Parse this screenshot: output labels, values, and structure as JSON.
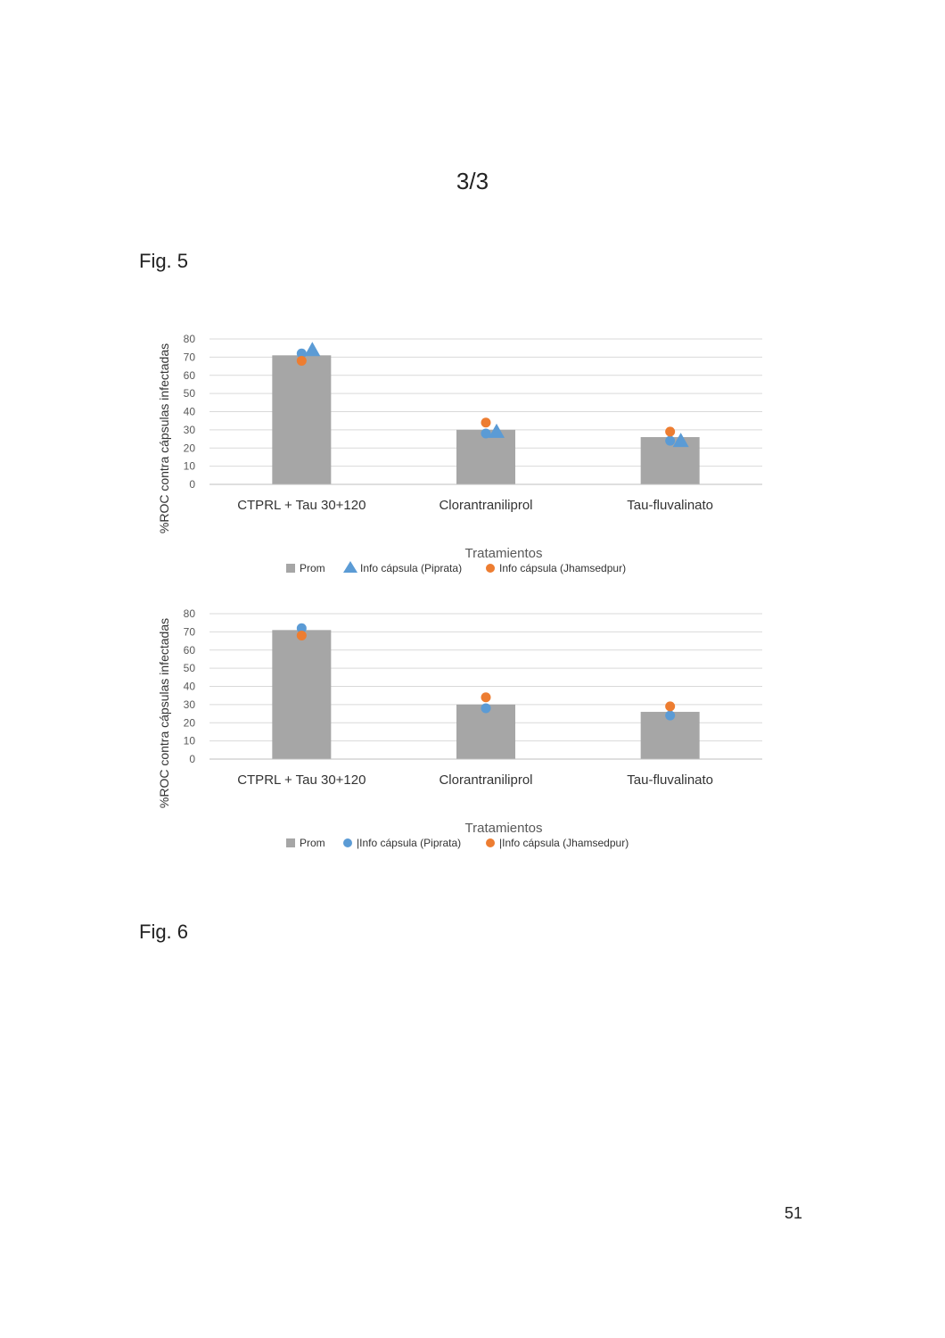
{
  "page": {
    "header": "3/3",
    "fig5_label": "Fig. 5",
    "fig6_label": "Fig. 6",
    "page_number": "51"
  },
  "colors": {
    "bar": "#a6a6a6",
    "piprata": "#5b9bd5",
    "jhamsedpur": "#ed7d31",
    "grid": "#d9d9d9",
    "axis_text": "#595959"
  },
  "chart_data": [
    {
      "type": "bar",
      "categories": [
        "CTPRL + Tau 30+120",
        "Clorantraniliprol",
        "Tau-fluvalinato"
      ],
      "title": "",
      "xlabel": "Tratamientos",
      "ylabel": "%ROC contra cápsulas infectadas",
      "ylim": [
        0,
        80
      ],
      "yticks": [
        0,
        10,
        20,
        30,
        40,
        50,
        60,
        70,
        80
      ],
      "grid": true,
      "legend_position": "bottom",
      "series": [
        {
          "name": "Prom",
          "kind": "bar",
          "marker": "square",
          "values": [
            71,
            30,
            26
          ]
        },
        {
          "name": "Info cápsula (Piprata)",
          "kind": "scatter",
          "marker": "dot",
          "values": [
            72,
            28,
            24
          ]
        },
        {
          "name": "Info cápsula (Piprata)",
          "kind": "scatter",
          "marker": "triangle",
          "legend": false,
          "values": [
            74,
            29,
            24
          ]
        },
        {
          "name": "Info cápsula (Jhamsedpur)",
          "kind": "scatter",
          "marker": "dot",
          "values": [
            68,
            34,
            29
          ]
        }
      ]
    },
    {
      "type": "bar",
      "categories": [
        "CTPRL + Tau 30+120",
        "Clorantraniliprol",
        "Tau-fluvalinato"
      ],
      "title": "",
      "xlabel": "Tratamientos",
      "ylabel": "%ROC contra cápsulas infectadas",
      "ylim": [
        0,
        80
      ],
      "yticks": [
        0,
        10,
        20,
        30,
        40,
        50,
        60,
        70,
        80
      ],
      "grid": true,
      "legend_position": "bottom",
      "series": [
        {
          "name": "Prom",
          "kind": "bar",
          "marker": "square",
          "values": [
            71,
            30,
            26
          ]
        },
        {
          "name": "|Info cápsula (Piprata)",
          "kind": "scatter",
          "marker": "dot",
          "values": [
            72,
            28,
            24
          ]
        },
        {
          "name": "|Info cápsula (Jhamsedpur)",
          "kind": "scatter",
          "marker": "dot",
          "values": [
            68,
            34,
            29
          ]
        }
      ]
    }
  ]
}
